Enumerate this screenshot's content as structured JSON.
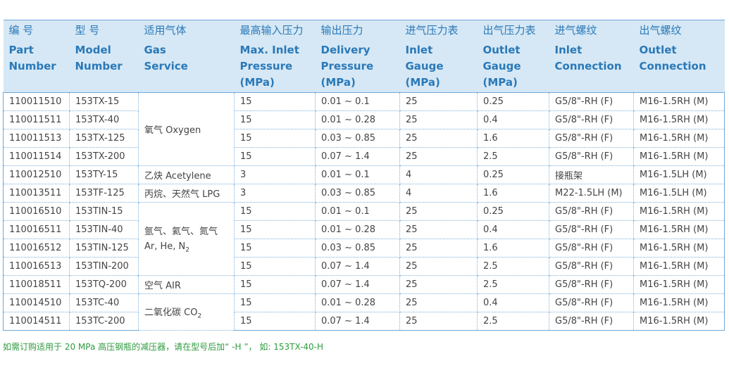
{
  "headers_zh": [
    "编 号",
    "型 号",
    "适用气体",
    "最高输入压力",
    "输出压力",
    "进气压力表",
    "出气压力表",
    "进气螺纹",
    "出气螺纹"
  ],
  "headers_en": [
    [
      "Part",
      "Number"
    ],
    [
      "Model",
      "Number"
    ],
    [
      "Gas",
      "Service"
    ],
    [
      "Max. Inlet",
      "Pressure",
      "(MPa)"
    ],
    [
      "Delivery",
      "Pressure",
      "(MPa)"
    ],
    [
      "Inlet",
      "Gauge",
      "(MPa)"
    ],
    [
      "Outlet",
      "Gauge",
      "(MPa)"
    ],
    [
      "Inlet",
      "Connection"
    ],
    [
      "Outlet",
      "Connection"
    ]
  ],
  "gas_groups": [
    {
      "label": "氧气 Oxygen",
      "rows": 4
    },
    {
      "label": "乙炔 Acetylene",
      "rows": 1
    },
    {
      "label": "丙烷、天然气 LPG",
      "rows": 1
    },
    {
      "label_line1": "氩气、氦气、氮气",
      "label_line2": "Ar, He, N",
      "label_sub": "2",
      "rows": 4
    },
    {
      "label": "空气 AIR",
      "rows": 1
    },
    {
      "label": "二氧化碳 CO",
      "label_sub": "2",
      "rows": 2
    }
  ],
  "rows": [
    {
      "part": "110011510",
      "model": "153TX-15",
      "max_in": "15",
      "delivery": "0.01 ~ 0.1",
      "in_gauge": "25",
      "out_gauge": "0.25",
      "in_conn": "G5/8\"-RH (F)",
      "out_conn": "M16-1.5RH (M)"
    },
    {
      "part": "110011511",
      "model": "153TX-40",
      "max_in": "15",
      "delivery": "0.01 ~ 0.28",
      "in_gauge": "25",
      "out_gauge": "0.4",
      "in_conn": "G5/8\"-RH (F)",
      "out_conn": "M16-1.5RH (M)"
    },
    {
      "part": "110011513",
      "model": "153TX-125",
      "max_in": "15",
      "delivery": "0.03 ~ 0.85",
      "in_gauge": "25",
      "out_gauge": "1.6",
      "in_conn": "G5/8\"-RH (F)",
      "out_conn": "M16-1.5RH (M)"
    },
    {
      "part": "110011514",
      "model": "153TX-200",
      "max_in": "15",
      "delivery": "0.07 ~ 1.4",
      "in_gauge": "25",
      "out_gauge": "2.5",
      "in_conn": "G5/8\"-RH (F)",
      "out_conn": "M16-1.5RH (M)"
    },
    {
      "part": "110012510",
      "model": "153TY-15",
      "max_in": "3",
      "delivery": "0.01 ~ 0.1",
      "in_gauge": "4",
      "out_gauge": "0.25",
      "in_conn": "接瓶架",
      "out_conn": "M16-1.5LH (M)"
    },
    {
      "part": "110013511",
      "model": "153TF-125",
      "max_in": "3",
      "delivery": "0.03 ~ 0.85",
      "in_gauge": "4",
      "out_gauge": "1.6",
      "in_conn": "M22-1.5LH (M)",
      "out_conn": "M16-1.5LH (M)"
    },
    {
      "part": "110016510",
      "model": "153TIN-15",
      "max_in": "15",
      "delivery": "0.01 ~ 0.1",
      "in_gauge": "25",
      "out_gauge": "0.25",
      "in_conn": "G5/8\"-RH (F)",
      "out_conn": "M16-1.5RH (M)"
    },
    {
      "part": "110016511",
      "model": "153TIN-40",
      "max_in": "15",
      "delivery": "0.01 ~ 0.28",
      "in_gauge": "25",
      "out_gauge": "0.4",
      "in_conn": "G5/8\"-RH (F)",
      "out_conn": "M16-1.5RH (M)"
    },
    {
      "part": "110016512",
      "model": "153TIN-125",
      "max_in": "15",
      "delivery": "0.03 ~ 0.85",
      "in_gauge": "25",
      "out_gauge": "1.6",
      "in_conn": "G5/8\"-RH (F)",
      "out_conn": "M16-1.5RH (M)"
    },
    {
      "part": "110016513",
      "model": "153TIN-200",
      "max_in": "15",
      "delivery": "0.07 ~ 1.4",
      "in_gauge": "25",
      "out_gauge": "2.5",
      "in_conn": "G5/8\"-RH (F)",
      "out_conn": "M16-1.5RH (M)"
    },
    {
      "part": "110018511",
      "model": "153TQ-200",
      "max_in": "15",
      "delivery": "0.07 ~ 1.4",
      "in_gauge": "25",
      "out_gauge": "2.5",
      "in_conn": "G5/8\"-RH (F)",
      "out_conn": "M16-1.5RH (M)"
    },
    {
      "part": "110014510",
      "model": "153TC-40",
      "max_in": "15",
      "delivery": "0.01 ~ 0.28",
      "in_gauge": "25",
      "out_gauge": "0.4",
      "in_conn": "G5/8\"-RH (F)",
      "out_conn": "M16-1.5RH (M)"
    },
    {
      "part": "110014511",
      "model": "153TC-200",
      "max_in": "15",
      "delivery": "0.07 ~ 1.4",
      "in_gauge": "25",
      "out_gauge": "2.5",
      "in_conn": "G5/8\"-RH (F)",
      "out_conn": "M16-1.5RH (M)"
    }
  ],
  "note": "如需订购适用于 20 MPa  高压钢瓶的减压器，请在型号后加“ -H ”，  如:    153TX-40-H",
  "colors": {
    "header_bg": "#d6e8f5",
    "header_text": "#2a79b8",
    "note_text": "#2e9b3e",
    "grid": "#7fb0d8"
  }
}
